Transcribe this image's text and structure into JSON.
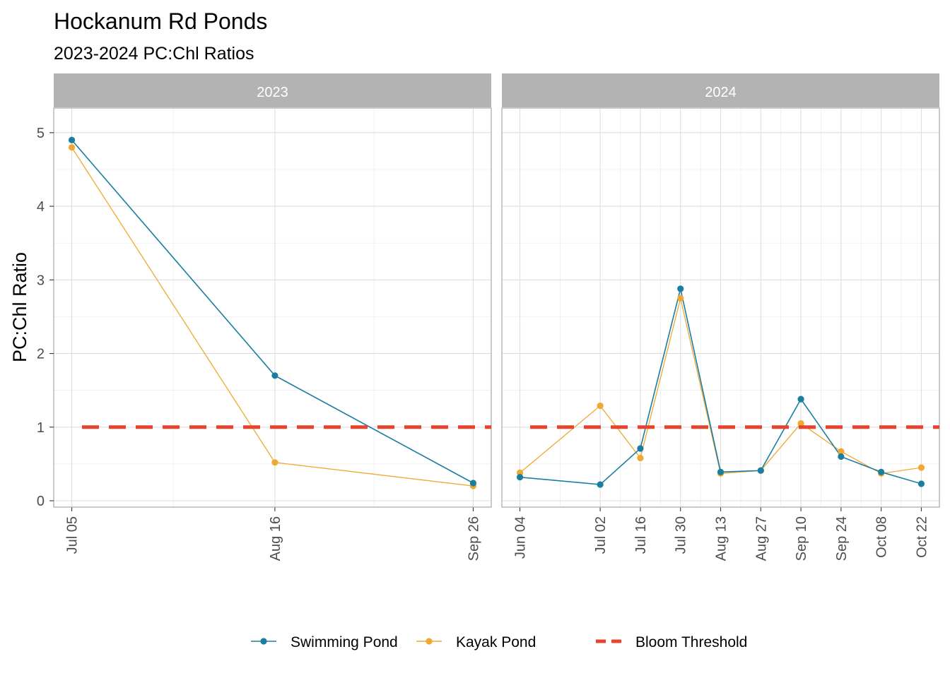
{
  "chart_data": {
    "type": "line",
    "title": "Hockanum Rd Ponds",
    "subtitle": "2023-2024 PC:Chl Ratios",
    "ylabel": "PC:Chl Ratio",
    "xlabel": "",
    "ylim": [
      0,
      5.2
    ],
    "yticks": [
      0,
      1,
      2,
      3,
      4,
      5
    ],
    "grid": true,
    "legend_position": "bottom",
    "threshold": {
      "name": "Bloom Threshold",
      "value": 1,
      "color": "#e8432f",
      "style": "dashed"
    },
    "series_meta": [
      {
        "name": "Swimming Pond",
        "color": "#1a7ea0"
      },
      {
        "name": "Kayak Pond",
        "color": "#f0a830"
      }
    ],
    "panels": [
      {
        "label": "2023",
        "x": [
          "2023-07-05",
          "2023-08-16",
          "2023-09-26"
        ],
        "xlim": [
          "2023-07-05",
          "2023-09-26"
        ],
        "xticks": [
          "2023-07-05",
          "2023-08-16",
          "2023-09-26"
        ],
        "xtick_labels": [
          "Jul 05",
          "Aug 16",
          "Sep 26"
        ],
        "series": [
          {
            "name": "Swimming Pond",
            "values": [
              4.9,
              1.7,
              0.24
            ]
          },
          {
            "name": "Kayak Pond",
            "values": [
              4.8,
              0.52,
              0.2
            ]
          }
        ]
      },
      {
        "label": "2024",
        "x": [
          "2024-06-04",
          "2024-07-02",
          "2024-07-16",
          "2024-07-30",
          "2024-08-13",
          "2024-08-27",
          "2024-09-10",
          "2024-09-24",
          "2024-10-08",
          "2024-10-22"
        ],
        "xlim": [
          "2024-06-04",
          "2024-10-22"
        ],
        "xticks": [
          "2024-06-04",
          "2024-07-02",
          "2024-07-16",
          "2024-07-30",
          "2024-08-13",
          "2024-08-27",
          "2024-09-10",
          "2024-09-24",
          "2024-10-08",
          "2024-10-22"
        ],
        "xtick_labels": [
          "Jun 04",
          "Jul 02",
          "Jul 16",
          "Jul 30",
          "Aug 13",
          "Aug 27",
          "Sep 10",
          "Sep 24",
          "Oct 08",
          "Oct 22"
        ],
        "series": [
          {
            "name": "Swimming Pond",
            "values": [
              0.32,
              0.22,
              0.71,
              2.88,
              0.39,
              0.41,
              1.38,
              0.6,
              0.39,
              0.23
            ]
          },
          {
            "name": "Kayak Pond",
            "values": [
              0.38,
              1.29,
              0.58,
              2.75,
              0.37,
              0.41,
              1.05,
              0.67,
              0.37,
              0.45
            ]
          }
        ]
      }
    ]
  }
}
